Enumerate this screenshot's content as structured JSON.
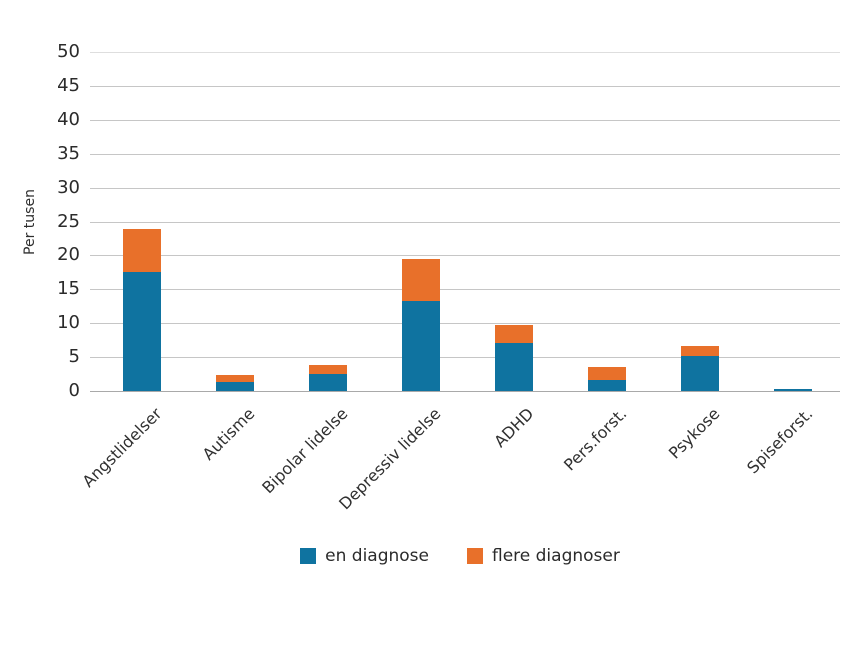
{
  "chart_data": {
    "type": "bar",
    "stacked": true,
    "title": "",
    "xlabel": "",
    "ylabel": "Per tusen",
    "categories": [
      "Angstlidelser",
      "Autisme",
      "Bipolar lidelse",
      "Depressiv lidelse",
      "ADHD",
      "Pers.forst.",
      "Psykose",
      "Spiseforst."
    ],
    "series": [
      {
        "name": "en diagnose",
        "color": "#0f73a0",
        "values": [
          17.6,
          1.3,
          2.5,
          13.3,
          7.1,
          1.6,
          5.2,
          0.3
        ]
      },
      {
        "name": "flere diagnoser",
        "color": "#e8702a",
        "values": [
          6.3,
          1.0,
          1.3,
          6.1,
          2.6,
          1.9,
          1.4,
          0.0
        ]
      }
    ],
    "stack_totals": [
      23.9,
      2.3,
      3.8,
      19.4,
      9.7,
      3.5,
      6.6,
      0.3
    ],
    "ylim": [
      0,
      50
    ],
    "yticks": [
      0,
      5,
      10,
      15,
      20,
      25,
      30,
      35,
      40,
      45,
      50
    ],
    "grid": true,
    "legend_position": "bottom"
  },
  "colors": {
    "background": "#ffffff",
    "grid": "#c6c6c6",
    "top_grid": "#dedede",
    "axis_line": "#a9a9a9",
    "text": "#2b2b2b"
  }
}
